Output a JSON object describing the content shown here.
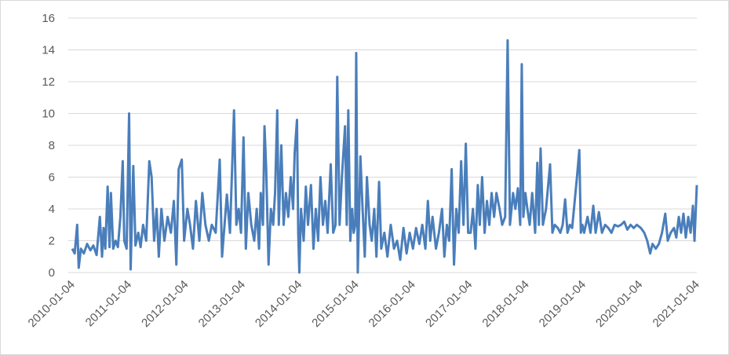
{
  "chart_data": {
    "type": "line",
    "x": [
      "2010-01-04",
      "2010-01-20",
      "2010-02-05",
      "2010-02-15",
      "2010-03-01",
      "2010-03-20",
      "2010-04-10",
      "2010-05-01",
      "2010-05-20",
      "2010-06-10",
      "2010-07-01",
      "2010-07-15",
      "2010-07-25",
      "2010-08-05",
      "2010-08-20",
      "2010-09-01",
      "2010-09-10",
      "2010-09-25",
      "2010-10-10",
      "2010-10-25",
      "2010-11-10",
      "2010-11-25",
      "2010-12-05",
      "2010-12-20",
      "2011-01-05",
      "2011-01-15",
      "2011-02-01",
      "2011-02-15",
      "2011-03-05",
      "2011-03-20",
      "2011-04-05",
      "2011-04-25",
      "2011-05-15",
      "2011-05-30",
      "2011-06-15",
      "2011-07-01",
      "2011-07-15",
      "2011-08-01",
      "2011-08-20",
      "2011-09-10",
      "2011-10-01",
      "2011-10-20",
      "2011-11-05",
      "2011-11-20",
      "2011-12-10",
      "2011-12-25",
      "2012-01-15",
      "2012-02-01",
      "2012-02-20",
      "2012-03-10",
      "2012-04-01",
      "2012-04-20",
      "2012-05-10",
      "2012-06-01",
      "2012-06-20",
      "2012-07-15",
      "2012-08-10",
      "2012-08-25",
      "2012-09-10",
      "2012-09-25",
      "2012-10-15",
      "2012-11-10",
      "2012-11-25",
      "2012-12-10",
      "2012-12-25",
      "2013-01-10",
      "2013-01-25",
      "2013-02-10",
      "2013-03-01",
      "2013-03-20",
      "2013-04-05",
      "2013-04-20",
      "2013-05-01",
      "2013-05-15",
      "2013-05-25",
      "2013-06-05",
      "2013-06-20",
      "2013-07-05",
      "2013-07-20",
      "2013-08-01",
      "2013-08-15",
      "2013-08-25",
      "2013-09-10",
      "2013-09-25",
      "2013-10-10",
      "2013-10-25",
      "2013-11-10",
      "2013-11-25",
      "2013-12-05",
      "2013-12-20",
      "2013-12-28",
      "2014-01-04",
      "2014-01-15",
      "2014-02-01",
      "2014-02-15",
      "2014-03-01",
      "2014-03-20",
      "2014-04-05",
      "2014-04-20",
      "2014-05-05",
      "2014-05-20",
      "2014-06-05",
      "2014-06-20",
      "2014-07-05",
      "2014-07-25",
      "2014-08-10",
      "2014-08-25",
      "2014-09-05",
      "2014-09-20",
      "2014-10-05",
      "2014-10-25",
      "2014-11-05",
      "2014-11-15",
      "2014-11-28",
      "2014-12-10",
      "2014-12-20",
      "2014-12-30",
      "2015-01-05",
      "2015-01-15",
      "2015-02-01",
      "2015-02-15",
      "2015-03-01",
      "2015-03-15",
      "2015-04-01",
      "2015-04-15",
      "2015-05-01",
      "2015-05-15",
      "2015-06-01",
      "2015-06-15",
      "2015-07-05",
      "2015-07-25",
      "2015-08-15",
      "2015-09-05",
      "2015-09-25",
      "2015-10-15",
      "2015-11-05",
      "2015-11-25",
      "2015-12-15",
      "2016-01-05",
      "2016-01-25",
      "2016-02-15",
      "2016-03-05",
      "2016-03-25",
      "2016-04-10",
      "2016-04-25",
      "2016-05-10",
      "2016-06-01",
      "2016-06-20",
      "2016-07-10",
      "2016-07-25",
      "2016-08-10",
      "2016-08-25",
      "2016-09-10",
      "2016-09-25",
      "2016-10-10",
      "2016-10-25",
      "2016-11-10",
      "2016-11-25",
      "2016-12-10",
      "2016-12-25",
      "2017-01-10",
      "2017-01-25",
      "2017-02-10",
      "2017-02-25",
      "2017-03-10",
      "2017-03-25",
      "2017-04-10",
      "2017-04-25",
      "2017-05-10",
      "2017-05-25",
      "2017-06-10",
      "2017-06-25",
      "2017-07-15",
      "2017-08-01",
      "2017-08-20",
      "2017-09-05",
      "2017-09-20",
      "2017-10-10",
      "2017-10-25",
      "2017-11-10",
      "2017-11-25",
      "2017-12-05",
      "2017-12-15",
      "2017-12-28",
      "2018-01-10",
      "2018-01-25",
      "2018-02-10",
      "2018-03-01",
      "2018-03-15",
      "2018-03-25",
      "2018-04-05",
      "2018-04-20",
      "2018-05-10",
      "2018-06-05",
      "2018-06-20",
      "2018-07-05",
      "2018-07-25",
      "2018-08-10",
      "2018-08-25",
      "2018-09-10",
      "2018-09-25",
      "2018-10-10",
      "2018-10-25",
      "2018-11-25",
      "2018-12-10",
      "2018-12-20",
      "2018-12-30",
      "2019-01-10",
      "2019-02-01",
      "2019-02-20",
      "2019-03-10",
      "2019-03-25",
      "2019-04-15",
      "2019-05-05",
      "2019-05-25",
      "2019-06-15",
      "2019-07-05",
      "2019-07-25",
      "2019-08-15",
      "2019-09-05",
      "2019-09-25",
      "2019-10-15",
      "2019-11-05",
      "2019-11-25",
      "2019-12-15",
      "2020-01-10",
      "2020-02-01",
      "2020-02-20",
      "2020-03-10",
      "2020-03-25",
      "2020-04-15",
      "2020-05-05",
      "2020-05-25",
      "2020-06-15",
      "2020-07-01",
      "2020-07-20",
      "2020-08-10",
      "2020-08-25",
      "2020-09-10",
      "2020-09-25",
      "2020-10-10",
      "2020-10-25",
      "2020-11-10",
      "2020-11-25",
      "2020-12-10",
      "2020-12-20",
      "2021-01-04"
    ],
    "values": [
      1.5,
      1.2,
      3,
      0.3,
      1.5,
      1.2,
      1.8,
      1.4,
      1.7,
      1.1,
      3.5,
      1,
      2.8,
      1.5,
      5.4,
      1.6,
      5,
      1.5,
      2,
      1.6,
      3.5,
      7,
      2,
      1.5,
      10,
      0.2,
      6.7,
      1.7,
      2.5,
      1.6,
      3,
      2,
      7,
      6,
      2,
      4,
      1,
      4,
      2,
      3.5,
      2.5,
      4.5,
      0.5,
      6.5,
      7.1,
      2,
      4,
      3,
      1.5,
      4.5,
      2,
      5,
      3,
      2,
      3,
      2.5,
      7.1,
      1,
      3,
      4.9,
      2.5,
      10.2,
      3,
      4,
      2.5,
      8.5,
      1.5,
      5,
      3,
      2,
      4,
      1.5,
      5,
      3,
      9.2,
      6.5,
      0.5,
      4,
      3,
      5,
      10.2,
      3,
      8,
      3,
      5,
      3.5,
      6,
      4,
      7.5,
      9.6,
      2.5,
      0,
      4,
      2,
      5.4,
      3,
      5.5,
      1.5,
      4,
      2,
      6,
      3,
      4.5,
      2.5,
      6.8,
      2.5,
      3,
      12.3,
      3,
      6,
      9.2,
      3,
      10.2,
      2,
      4,
      2.5,
      3,
      13.8,
      0,
      7.3,
      4,
      1,
      6,
      3,
      2,
      4,
      1,
      5.7,
      1.5,
      2.5,
      1,
      3,
      1.5,
      2,
      0.8,
      2.8,
      1.2,
      2.5,
      1.5,
      2.8,
      1.8,
      3,
      1.5,
      4.5,
      2,
      3.5,
      1.5,
      2.5,
      4,
      1,
      3,
      2,
      6.5,
      0.5,
      4,
      2.5,
      7,
      3,
      8.1,
      2.5,
      2.5,
      4,
      1.5,
      5.5,
      3,
      6,
      2.5,
      4.5,
      3,
      5,
      3.5,
      5,
      4,
      3,
      3.5,
      14.6,
      3,
      5,
      4,
      5.3,
      3,
      13.1,
      3.5,
      5,
      4,
      3,
      5,
      2.5,
      6.9,
      3,
      7.8,
      3,
      4,
      6.8,
      2.5,
      3,
      2.8,
      2.5,
      3,
      4.6,
      2.5,
      3,
      2.8,
      6,
      7.7,
      2.5,
      3,
      2.5,
      3.5,
      2.5,
      4.2,
      2.5,
      3.8,
      2.5,
      3,
      2.8,
      2.5,
      3,
      2.9,
      3,
      3.2,
      2.7,
      3,
      2.8,
      3,
      2.8,
      2.5,
      2,
      1.2,
      1.8,
      1.5,
      1.8,
      2.5,
      3.7,
      2,
      2.5,
      2.8,
      2.2,
      3.5,
      2.5,
      3.7,
      2.2,
      3.5,
      2.5,
      4.2,
      2,
      5.5
    ],
    "color": "#4a7ebb",
    "xlim": [
      "2010-01-04",
      "2021-01-04"
    ],
    "xticks": [
      "2010-01-04",
      "2011-01-04",
      "2012-01-04",
      "2013-01-04",
      "2014-01-04",
      "2015-01-04",
      "2016-01-04",
      "2017-01-04",
      "2018-01-04",
      "2019-01-04",
      "2020-01-04",
      "2021-01-04"
    ],
    "ylim": [
      0,
      16
    ],
    "yticks": [
      0,
      2,
      4,
      6,
      8,
      10,
      12,
      14,
      16
    ],
    "grid": true
  }
}
